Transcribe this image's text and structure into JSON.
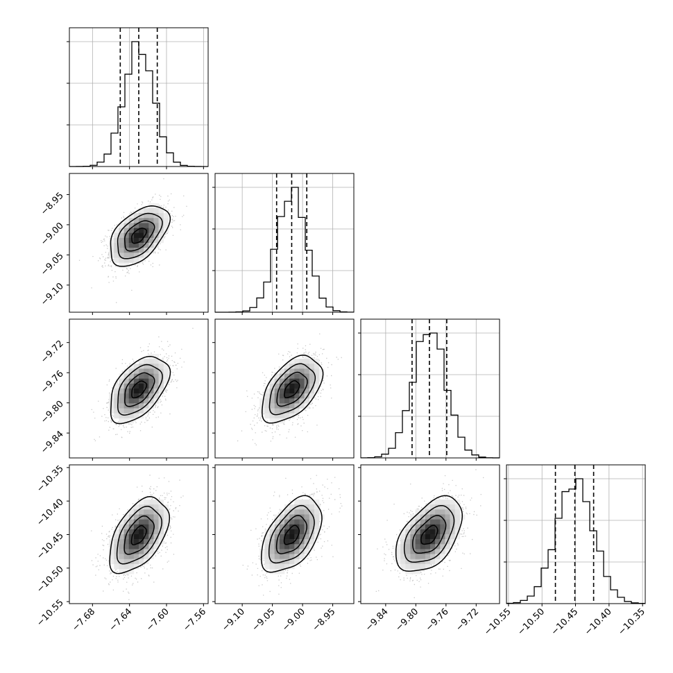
{
  "chart_data": {
    "type": "corner",
    "title": "",
    "parameters": [
      {
        "range": [
          -7.705,
          -7.555
        ],
        "ticks": [
          -7.68,
          -7.64,
          -7.6,
          -7.56
        ],
        "tick_labels": [
          "−7.68",
          "−7.64",
          "−7.60",
          "−7.56"
        ],
        "quantiles": [
          -7.65,
          -7.63,
          -7.61
        ],
        "mean": -7.63,
        "sd": 0.016
      },
      {
        "range": [
          -9.145,
          -8.915
        ],
        "ticks": [
          -9.1,
          -9.05,
          -9.0,
          -8.95
        ],
        "tick_labels": [
          "−9.10",
          "−9.05",
          "−9.00",
          "−8.95"
        ],
        "quantiles": [
          -9.043,
          -9.018,
          -8.993
        ],
        "mean": -9.018,
        "sd": 0.025
      },
      {
        "range": [
          -9.873,
          -9.689
        ],
        "ticks": [
          -9.84,
          -9.8,
          -9.76,
          -9.72
        ],
        "tick_labels": [
          "−9.84",
          "−9.80",
          "−9.76",
          "−9.72"
        ],
        "quantiles": [
          -9.805,
          -9.782,
          -9.759
        ],
        "mean": -9.782,
        "sd": 0.022
      },
      {
        "range": [
          -10.553,
          -10.346
        ],
        "ticks": [
          -10.55,
          -10.5,
          -10.45,
          -10.4,
          -10.35
        ],
        "tick_labels": [
          "−10.55",
          "−10.50",
          "−10.45",
          "−10.40",
          "−10.35"
        ],
        "quantiles": [
          -10.48,
          -10.451,
          -10.423
        ],
        "mean": -10.451,
        "sd": 0.028
      }
    ],
    "correlation": 0.5,
    "contour_levels_sigma": [
      0.5,
      1.0,
      1.5,
      2.0
    ],
    "grid": true,
    "colors": {
      "line": "#000000",
      "grid": "#b0b0b0",
      "points": "#9a9a9a",
      "fill_dark": "#000000",
      "fill_light": "#ffffff"
    }
  }
}
